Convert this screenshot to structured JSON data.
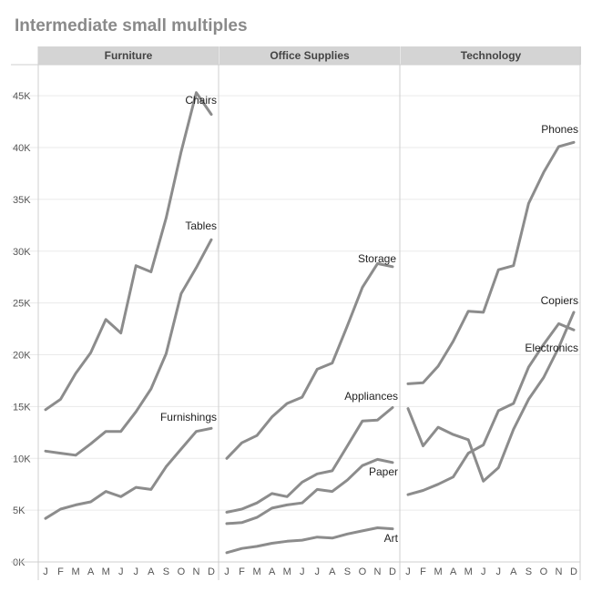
{
  "title": "Intermediate small multiples",
  "chart_data": {
    "type": "line",
    "title": "Intermediate small multiples",
    "xlabel": "",
    "ylabel": "",
    "ylim": [
      0,
      48000
    ],
    "y_ticks": [
      0,
      5000,
      10000,
      15000,
      20000,
      25000,
      30000,
      35000,
      40000,
      45000
    ],
    "y_tick_labels": [
      "0K",
      "5K",
      "10K",
      "15K",
      "20K",
      "25K",
      "30K",
      "35K",
      "40K",
      "45K"
    ],
    "x_categories": [
      "J",
      "F",
      "M",
      "A",
      "M",
      "J",
      "J",
      "A",
      "S",
      "O",
      "N",
      "D"
    ],
    "grid": true,
    "colors": {
      "line": "#8c8c8c",
      "header_bg": "#d4d4d4",
      "grid": "#eaeaea"
    },
    "panels": [
      {
        "name": "Furniture",
        "series": [
          {
            "name": "Chairs",
            "values": [
              14700,
              15700,
              18200,
              20200,
              23400,
              22100,
              28600,
              28000,
              33200,
              39600,
              45300,
              43200
            ]
          },
          {
            "name": "Tables",
            "values": [
              10700,
              10500,
              10300,
              11400,
              12600,
              12600,
              14500,
              16700,
              20100,
              25900,
              28400,
              31100
            ]
          },
          {
            "name": "Furnishings",
            "values": [
              4200,
              5100,
              5500,
              5800,
              6800,
              6300,
              7200,
              7000,
              9200,
              10900,
              12600,
              12900
            ]
          }
        ]
      },
      {
        "name": "Office Supplies",
        "series": [
          {
            "name": "Storage",
            "values": [
              10000,
              11500,
              12200,
              14000,
              15300,
              15900,
              18600,
              19200,
              22800,
              26500,
              28800,
              28500
            ]
          },
          {
            "name": "Appliances",
            "values": [
              4800,
              5100,
              5700,
              6600,
              6300,
              7700,
              8500,
              8800,
              11200,
              13600,
              13700,
              14900
            ]
          },
          {
            "name": "Paper",
            "values": [
              3700,
              3800,
              4300,
              5200,
              5500,
              5700,
              7000,
              6800,
              7900,
              9300,
              9900,
              9600
            ]
          },
          {
            "name": "Art",
            "values": [
              900,
              1300,
              1500,
              1800,
              2000,
              2100,
              2400,
              2300,
              2700,
              3000,
              3300,
              3200
            ]
          }
        ]
      },
      {
        "name": "Technology",
        "series": [
          {
            "name": "Phones",
            "values": [
              17200,
              17300,
              18900,
              21300,
              24200,
              24100,
              28200,
              28600,
              34600,
              37600,
              40100,
              40500
            ]
          },
          {
            "name": "Copiers",
            "values": [
              14800,
              11200,
              13000,
              12300,
              11800,
              7800,
              9100,
              12800,
              15700,
              17800,
              20700,
              24100
            ]
          },
          {
            "name": "Electronics",
            "values": [
              6500,
              6900,
              7500,
              8200,
              10500,
              11300,
              14600,
              15300,
              18800,
              21000,
              23000,
              22400
            ]
          }
        ]
      }
    ]
  }
}
